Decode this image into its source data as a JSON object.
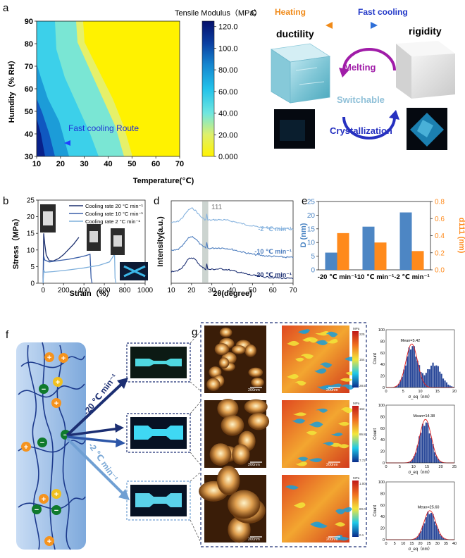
{
  "panel_a": {
    "letter": "a",
    "route_label": "Fast cooling Route",
    "colorbar_title": "Tensile Modulus（MPa）",
    "chart_data": {
      "type": "heatmap",
      "xlabel": "Temperature(℃)",
      "ylabel": "Humdity（% RH）",
      "xlim": [
        10,
        70
      ],
      "ylim": [
        30,
        90
      ],
      "xticks": [
        "10",
        "20",
        "30",
        "40",
        "50",
        "60",
        "70"
      ],
      "yticks": [
        "30",
        "40",
        "50",
        "60",
        "70",
        "80",
        "90"
      ],
      "colorbar_range": [
        0,
        125
      ],
      "colorbar_ticks": [
        "0.000",
        "20.00",
        "40.00",
        "60.00",
        "80.00",
        "100.0",
        "120.0"
      ]
    }
  },
  "panel_b": {
    "letter": "b",
    "chart_data": {
      "type": "line",
      "xlabel": "Strain（%）",
      "ylabel": "Stress（MPa）",
      "xlim": [
        -50,
        1000
      ],
      "ylim": [
        0,
        25
      ],
      "xticks": [
        "0",
        "200",
        "400",
        "600",
        "800",
        "1000"
      ],
      "yticks": [
        "0",
        "5",
        "10",
        "15",
        "20",
        "25"
      ],
      "series": [
        {
          "name": "Cooling rate 20 °C min⁻¹",
          "color": "#1b2f6e",
          "x": [
            0,
            5,
            15,
            30,
            60,
            100,
            150,
            200,
            250,
            300,
            350
          ],
          "y": [
            0,
            15,
            12,
            8.5,
            6.8,
            6.7,
            7.4,
            8.6,
            10.2,
            11.8,
            13.8
          ]
        },
        {
          "name": "Cooling rate 10 °C min⁻¹",
          "color": "#3a5fa8",
          "x": [
            0,
            5,
            15,
            60,
            150,
            250,
            350,
            420,
            460,
            470,
            480
          ],
          "y": [
            0,
            8.2,
            7.0,
            6.4,
            6.8,
            7.2,
            7.8,
            8.3,
            8.7,
            1.5,
            0
          ]
        },
        {
          "name": "Cooling rate  2 °C min⁻¹",
          "color": "#7fb0dc",
          "x": [
            0,
            5,
            15,
            100,
            250,
            400,
            550,
            650,
            700,
            705,
            715
          ],
          "y": [
            0,
            4.0,
            3.3,
            3.5,
            4.0,
            4.6,
            5.4,
            6.4,
            8.7,
            1.5,
            0
          ]
        }
      ]
    }
  },
  "panel_c": {
    "letter": "c",
    "heating": "Heating",
    "fast_cooling": "Fast cooling",
    "ductility": "ductility",
    "rigidity": "rigidity",
    "melting": "Melting",
    "switchable": "Switchable",
    "crystallization": "Crystallization"
  },
  "panel_d": {
    "letter": "d",
    "peak_label": "111",
    "chart_data": {
      "type": "line",
      "xlabel": "2θ(degree)",
      "ylabel": "Intensity(a.u.)",
      "xlim": [
        10,
        70
      ],
      "xticks": [
        "10",
        "20",
        "30",
        "40",
        "50",
        "60",
        "70"
      ],
      "highlight_band": [
        25,
        28
      ],
      "series": [
        {
          "name": "-2 ℃ min⁻¹",
          "color": "#88b4df"
        },
        {
          "name": "-10 ℃ min⁻¹",
          "color": "#4f7fbf"
        },
        {
          "name": "-20 ℃ min⁻¹",
          "color": "#1c2f73"
        }
      ]
    }
  },
  "panel_e": {
    "letter": "e",
    "chart_data": {
      "type": "bar",
      "categories": [
        "-20 ℃ min⁻¹",
        "-10 ℃ min⁻¹",
        "-2 ℃ min⁻¹"
      ],
      "series": [
        {
          "name": "D (nm)",
          "axis": "left",
          "color": "#4d86c4",
          "values": [
            6.3,
            15.8,
            21.0
          ]
        },
        {
          "name": "d111 (nm)",
          "axis": "right",
          "color": "#ff8a1c",
          "values": [
            0.43,
            0.32,
            0.22
          ]
        }
      ],
      "ylabel": "D (nm)",
      "y2label": "d111 (nm)",
      "ylim": [
        0,
        25
      ],
      "y2lim": [
        0,
        0.8
      ],
      "yticks": [
        "0",
        "5",
        "10",
        "15",
        "20",
        "25"
      ],
      "y2ticks": [
        "0.0",
        "0.2",
        "0.4",
        "0.6",
        "0.8"
      ]
    }
  },
  "panel_f": {
    "letter": "f",
    "rate_fast": "-20 ℃ min⁻¹",
    "rate_slow": "-2 ℃ min⁻¹"
  },
  "panel_g": {
    "letter": "g",
    "scale": "200nm",
    "mod_unit": "MPa",
    "rows": [
      {
        "mod_max": "225",
        "mod_mid": "154",
        "mod_min": "28.5"
      },
      {
        "mod_max": "162",
        "mod_mid": "86.8",
        "mod_min": "7.72"
      },
      {
        "mod_max": "1.00",
        "mod_mid": "80.0",
        "mod_min": "0.1"
      }
    ],
    "histograms": [
      {
        "mean_label": "Mean=5.42",
        "ylabel": "Count",
        "xlabel": "σ_eq（nm）",
        "xlim": [
          0,
          20
        ],
        "ylim": [
          0,
          100
        ],
        "xticks": [
          "0",
          "5",
          "10",
          "15",
          "20"
        ],
        "yticks": [
          "0",
          "20",
          "40",
          "60",
          "80",
          "100"
        ],
        "center": 7.5,
        "peak": 72,
        "tail": 1
      },
      {
        "mean_label": "Mean=14.38",
        "ylabel": "Count",
        "xlabel": "σ_eq（nm）",
        "xlim": [
          0,
          25
        ],
        "ylim": [
          0,
          100
        ],
        "xticks": [
          "0",
          "5",
          "10",
          "15",
          "20",
          "25"
        ],
        "yticks": [
          "0",
          "20",
          "40",
          "60",
          "80",
          "100"
        ],
        "center": 14.4,
        "peak": 72,
        "tail": 0
      },
      {
        "mean_label": "Mean=25.60",
        "ylabel": "Count",
        "xlabel": "σ_eq（nm）",
        "xlim": [
          0,
          40
        ],
        "ylim": [
          0,
          100
        ],
        "xticks": [
          "0",
          "5",
          "10",
          "15",
          "20",
          "25",
          "30",
          "35",
          "40"
        ],
        "yticks": [
          "0",
          "20",
          "40",
          "60",
          "80",
          "100"
        ],
        "center": 25.6,
        "peak": 48,
        "tail": 0
      }
    ]
  }
}
